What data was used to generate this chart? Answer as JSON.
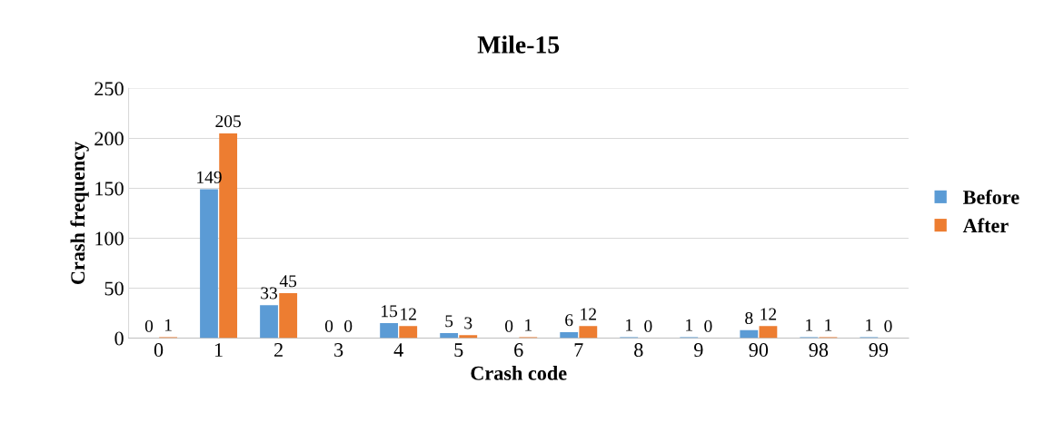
{
  "chart_data": {
    "type": "bar",
    "title": "Mile-15",
    "xlabel": "Crash code",
    "ylabel": "Crash frequency",
    "categories": [
      "0",
      "1",
      "2",
      "3",
      "4",
      "5",
      "6",
      "7",
      "8",
      "9",
      "90",
      "98",
      "99"
    ],
    "series": [
      {
        "name": "Before",
        "color": "#5b9bd5",
        "values": [
          0,
          149,
          33,
          0,
          15,
          5,
          0,
          6,
          1,
          1,
          8,
          1,
          1
        ]
      },
      {
        "name": "After",
        "color": "#ed7d31",
        "values": [
          1,
          205,
          45,
          0,
          12,
          3,
          1,
          12,
          0,
          0,
          12,
          1,
          0
        ]
      }
    ],
    "ylim": [
      0,
      250
    ],
    "yticks": [
      0,
      50,
      100,
      150,
      200,
      250
    ],
    "grid": "y",
    "legend": "right",
    "data_labels": true
  }
}
